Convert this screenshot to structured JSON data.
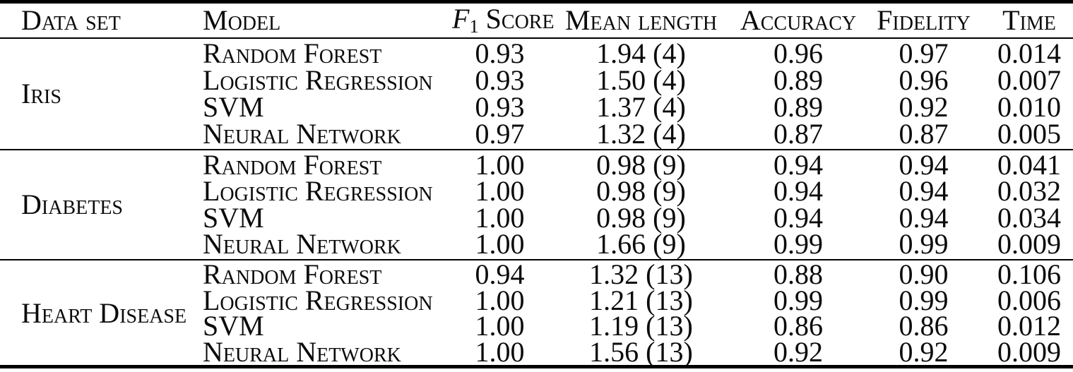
{
  "table": {
    "headers": {
      "dataset": "Data set",
      "model": "Model",
      "f1": {
        "letter": "F",
        "subscript": "1",
        "word": "Score"
      },
      "mean_length": "Mean length",
      "accuracy": "Accuracy",
      "fidelity": "Fidelity",
      "time": "Time"
    },
    "groups": [
      {
        "dataset": "Iris",
        "rows": [
          {
            "model": "Random Forest",
            "f1": "0.93",
            "mean_length": "1.94 (4)",
            "accuracy": "0.96",
            "fidelity": "0.97",
            "time": "0.014"
          },
          {
            "model": "Logistic Regression",
            "f1": "0.93",
            "mean_length": "1.50 (4)",
            "accuracy": "0.89",
            "fidelity": "0.96",
            "time": "0.007"
          },
          {
            "model": "SVM",
            "f1": "0.93",
            "mean_length": "1.37 (4)",
            "accuracy": "0.89",
            "fidelity": "0.92",
            "time": "0.010"
          },
          {
            "model": "Neural Network",
            "f1": "0.97",
            "mean_length": "1.32 (4)",
            "accuracy": "0.87",
            "fidelity": "0.87",
            "time": "0.005"
          }
        ]
      },
      {
        "dataset": "Diabetes",
        "rows": [
          {
            "model": "Random Forest",
            "f1": "1.00",
            "mean_length": "0.98 (9)",
            "accuracy": "0.94",
            "fidelity": "0.94",
            "time": "0.041"
          },
          {
            "model": "Logistic Regression",
            "f1": "1.00",
            "mean_length": "0.98 (9)",
            "accuracy": "0.94",
            "fidelity": "0.94",
            "time": "0.032"
          },
          {
            "model": "SVM",
            "f1": "1.00",
            "mean_length": "0.98 (9)",
            "accuracy": "0.94",
            "fidelity": "0.94",
            "time": "0.034"
          },
          {
            "model": "Neural Network",
            "f1": "1.00",
            "mean_length": "1.66 (9)",
            "accuracy": "0.99",
            "fidelity": "0.99",
            "time": "0.009"
          }
        ]
      },
      {
        "dataset": "Heart Disease",
        "rows": [
          {
            "model": "Random Forest",
            "f1": "0.94",
            "mean_length": "1.32 (13)",
            "accuracy": "0.88",
            "fidelity": "0.90",
            "time": "0.106"
          },
          {
            "model": "Logistic Regression",
            "f1": "1.00",
            "mean_length": "1.21 (13)",
            "accuracy": "0.99",
            "fidelity": "0.99",
            "time": "0.006"
          },
          {
            "model": "SVM",
            "f1": "1.00",
            "mean_length": "1.19 (13)",
            "accuracy": "0.86",
            "fidelity": "0.86",
            "time": "0.012"
          },
          {
            "model": "Neural Network",
            "f1": "1.00",
            "mean_length": "1.56 (13)",
            "accuracy": "0.92",
            "fidelity": "0.92",
            "time": "0.009"
          }
        ]
      }
    ],
    "colors": {
      "rule": "#000000",
      "text": "#0b0b0b",
      "background": "#ffffff"
    }
  }
}
